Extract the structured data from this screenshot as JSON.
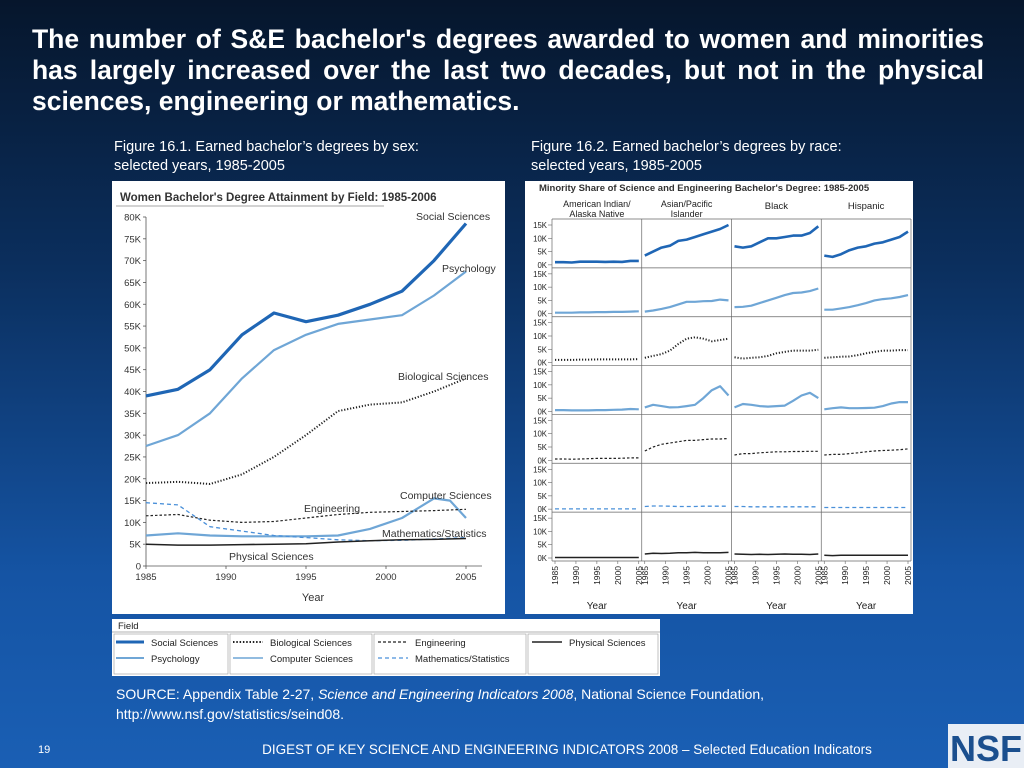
{
  "slide": {
    "title": "The number of S&E bachelor's degrees awarded to women and minorities has largely increased over the last two decades, but not in the physical sciences, engineering or mathematics.",
    "fig1_caption_line1": "Figure 16.1. Earned bachelor’s degrees by sex:",
    "fig1_caption_line2": "selected years, 1985-2005",
    "fig2_caption_line1": "Figure 16.2. Earned bachelor’s degrees by race:",
    "fig2_caption_line2": "selected years, 1985-2005",
    "source_prefix": "SOURCE: Appendix Table 2-27, ",
    "source_italic": "Science and Engineering Indicators 2008",
    "source_suffix": ", National Science Foundation,",
    "source_url": "http://www.nsf.gov/statistics/seind08.",
    "page_number": "19",
    "footer": "DIGEST OF KEY SCIENCE AND ENGINEERING INDICATORS 2008 – Selected Education Indicators",
    "logo_text": "NSF",
    "colors": {
      "dark_blue": "#1f66b5",
      "light_blue": "#6fa6d6",
      "black": "#222222"
    }
  },
  "legend": {
    "title": "Field",
    "items": [
      "Social Sciences",
      "Psychology",
      "Biological Sciences",
      "Computer Sciences",
      "Engineering",
      "Mathematics/Statistics",
      "Physical Sciences"
    ]
  },
  "chart_data": [
    {
      "type": "line",
      "title": "Women Bachelor's Degree Attainment by Field: 1985-2006",
      "xlabel": "Year",
      "ylabel": "",
      "xlim": [
        1985,
        2006
      ],
      "ylim": [
        0,
        80000
      ],
      "x_ticks": [
        1985,
        1990,
        1995,
        2000,
        2005
      ],
      "y_tick_labels": [
        "0",
        "5K",
        "10K",
        "15K",
        "20K",
        "25K",
        "30K",
        "35K",
        "40K",
        "45K",
        "50K",
        "55K",
        "60K",
        "65K",
        "70K",
        "75K",
        "80K"
      ],
      "grid": false,
      "series": [
        {
          "name": "Social Sciences",
          "label": "Social Sciences",
          "style": "dark",
          "x": [
            1985,
            1987,
            1989,
            1991,
            1993,
            1995,
            1997,
            1999,
            2001,
            2003,
            2005
          ],
          "values": [
            39000,
            40500,
            45000,
            53000,
            58000,
            56000,
            57500,
            60000,
            63000,
            70000,
            78500
          ]
        },
        {
          "name": "Psychology",
          "label": "Psychology",
          "style": "light",
          "x": [
            1985,
            1987,
            1989,
            1991,
            1993,
            1995,
            1997,
            1999,
            2001,
            2003,
            2005
          ],
          "values": [
            27500,
            30000,
            35000,
            43000,
            49500,
            53000,
            55500,
            56500,
            57500,
            62000,
            67500
          ]
        },
        {
          "name": "Biological Sciences",
          "label": "Biological Sciences",
          "style": "dotted",
          "x": [
            1985,
            1987,
            1989,
            1991,
            1993,
            1995,
            1997,
            1999,
            2001,
            2003,
            2005
          ],
          "values": [
            19000,
            19300,
            18800,
            21000,
            25000,
            30000,
            35500,
            37000,
            37500,
            40000,
            43000
          ]
        },
        {
          "name": "Computer Sciences",
          "label": "Computer Sciences",
          "style": "light",
          "x": [
            1985,
            1987,
            1989,
            1991,
            1993,
            1995,
            1997,
            1999,
            2001,
            2003,
            2004,
            2005
          ],
          "values": [
            7000,
            7500,
            7000,
            6800,
            6800,
            6800,
            7000,
            8500,
            11000,
            15500,
            15000,
            11000
          ]
        },
        {
          "name": "Engineering",
          "label": "Engineering",
          "style": "dashed-black",
          "x": [
            1985,
            1987,
            1989,
            1991,
            1993,
            1995,
            1997,
            1999,
            2001,
            2003,
            2005
          ],
          "values": [
            11500,
            11800,
            10500,
            10000,
            10200,
            11000,
            11800,
            12300,
            12500,
            12700,
            13000
          ]
        },
        {
          "name": "Mathematics/Statistics",
          "label": "Mathematics/Statistics",
          "style": "dashed-blue",
          "x": [
            1985,
            1987,
            1989,
            1991,
            1993,
            1995,
            1997,
            1999,
            2001,
            2003,
            2005
          ],
          "values": [
            14500,
            14000,
            9000,
            8000,
            7000,
            6500,
            6000,
            5800,
            5900,
            6200,
            6500
          ]
        },
        {
          "name": "Physical Sciences",
          "label": "Physical Sciences",
          "style": "black",
          "x": [
            1985,
            1987,
            1989,
            1991,
            1993,
            1995,
            1997,
            1999,
            2001,
            2003,
            2005
          ],
          "values": [
            5000,
            4800,
            4800,
            4900,
            5000,
            5100,
            5500,
            5800,
            6000,
            6100,
            6300
          ]
        }
      ]
    },
    {
      "type": "line",
      "title": "Minority Share of Science and Engineering Bachelor's Degree: 1985-2005",
      "xlabel": "Year",
      "groups": [
        "American Indian/ Alaska Native",
        "Asian/Pacific Islander",
        "Black",
        "Hispanic"
      ],
      "rows": [
        "Social Sciences",
        "Psychology",
        "Biological Sciences",
        "Computer Sciences",
        "Engineering",
        "Mathematics/Statistics",
        "Physical Sciences"
      ],
      "row_styles": [
        "dark",
        "light",
        "dotted",
        "light",
        "dashed-black",
        "dashed-blue",
        "black"
      ],
      "ylim": [
        0,
        15000
      ],
      "y_tick_labels": [
        "15K",
        "10K",
        "5K",
        "0K"
      ],
      "x_ticks": [
        1985,
        1990,
        1995,
        2000,
        2005
      ],
      "x": [
        1985,
        1987,
        1989,
        1991,
        1993,
        1995,
        1997,
        1999,
        2001,
        2003,
        2005
      ],
      "values": [
        [
          [
            1000,
            1000,
            900,
            1200,
            1200,
            1200,
            1100,
            1200,
            1100,
            1500,
            1500
          ],
          [
            3500,
            5000,
            6500,
            7200,
            9000,
            9500,
            10500,
            11500,
            12500,
            13500,
            15000
          ],
          [
            7000,
            6500,
            7000,
            8500,
            10000,
            10000,
            10500,
            11000,
            11000,
            12000,
            14500
          ],
          [
            3500,
            3000,
            4000,
            5500,
            6500,
            7000,
            8000,
            8500,
            9500,
            10500,
            12500
          ]
        ],
        [
          [
            400,
            400,
            400,
            500,
            500,
            600,
            600,
            700,
            700,
            800,
            900
          ],
          [
            800,
            1200,
            1800,
            2500,
            3500,
            4500,
            4500,
            4700,
            4800,
            5300,
            5000
          ],
          [
            2500,
            2600,
            3000,
            4000,
            5000,
            6000,
            7000,
            7800,
            8000,
            8500,
            9500
          ],
          [
            1500,
            1500,
            2000,
            2500,
            3200,
            4000,
            5000,
            5500,
            5800,
            6300,
            7000
          ]
        ],
        [
          [
            1000,
            1000,
            1000,
            1100,
            1100,
            1200,
            1200,
            1200,
            1200,
            1200,
            1300
          ],
          [
            1800,
            2500,
            3200,
            4500,
            7000,
            9000,
            9500,
            9000,
            8000,
            8500,
            9000
          ],
          [
            2000,
            1500,
            1800,
            2000,
            2500,
            3500,
            4000,
            4500,
            4500,
            4500,
            4800
          ],
          [
            1800,
            2000,
            2200,
            2300,
            2800,
            3500,
            4000,
            4500,
            4500,
            4700,
            4700
          ]
        ],
        [
          [
            500,
            500,
            400,
            400,
            400,
            500,
            500,
            600,
            700,
            900,
            800
          ],
          [
            1500,
            2500,
            2000,
            1500,
            1600,
            2000,
            2500,
            5000,
            8000,
            9500,
            6000
          ],
          [
            1500,
            2800,
            2500,
            2000,
            1800,
            2000,
            2200,
            4000,
            6000,
            7000,
            5000
          ],
          [
            800,
            1200,
            1500,
            1200,
            1200,
            1300,
            1400,
            2000,
            3000,
            3500,
            3500
          ]
        ],
        [
          [
            500,
            500,
            400,
            500,
            600,
            700,
            700,
            700,
            800,
            900,
            900
          ],
          [
            3500,
            5000,
            6000,
            6500,
            7000,
            7500,
            7500,
            7800,
            8000,
            8000,
            8200
          ],
          [
            2000,
            2500,
            2500,
            2800,
            3000,
            3200,
            3200,
            3300,
            3300,
            3400,
            3400
          ],
          [
            2000,
            2200,
            2200,
            2500,
            2800,
            3200,
            3500,
            3700,
            3800,
            4000,
            4300
          ]
        ],
        [
          [
            100,
            100,
            100,
            100,
            100,
            100,
            100,
            100,
            100,
            100,
            100
          ],
          [
            1000,
            1200,
            1200,
            1100,
            1000,
            1000,
            1000,
            1100,
            1100,
            1100,
            1100
          ],
          [
            1000,
            1000,
            900,
            900,
            900,
            900,
            900,
            900,
            900,
            900,
            900
          ],
          [
            600,
            600,
            600,
            600,
            600,
            600,
            600,
            600,
            600,
            600,
            600
          ]
        ],
        [
          [
            200,
            200,
            200,
            200,
            200,
            200,
            200,
            200,
            200,
            200,
            200
          ],
          [
            1500,
            1800,
            1700,
            1800,
            2000,
            2000,
            2100,
            2000,
            2000,
            2000,
            2100
          ],
          [
            1500,
            1400,
            1300,
            1400,
            1300,
            1400,
            1500,
            1400,
            1400,
            1300,
            1500
          ],
          [
            1000,
            900,
            1000,
            1000,
            1000,
            1000,
            1000,
            1000,
            1000,
            1000,
            1000
          ]
        ]
      ]
    }
  ]
}
